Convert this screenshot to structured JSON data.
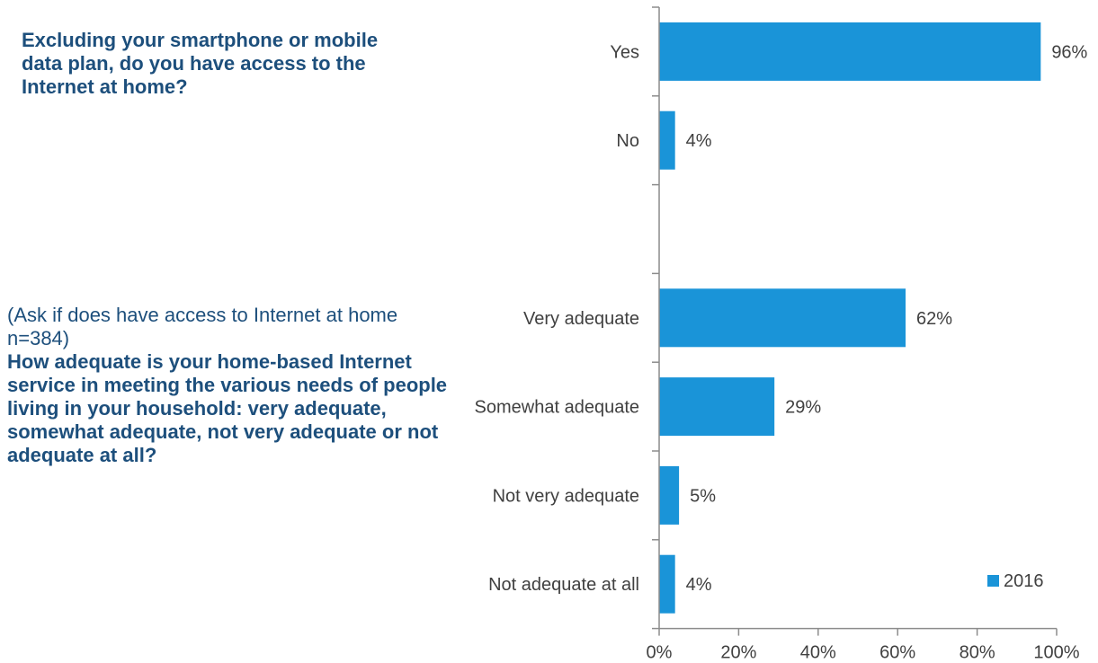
{
  "questions": {
    "q1": "Excluding your smartphone or mobile data plan, do you have access to the Internet at home?",
    "q2_note": "(Ask if does have access to Internet at home n=384)",
    "q2": "How adequate is your home-based Internet service in meeting the various needs of people living in your household: very adequate, somewhat adequate, not very adequate or not adequate at all?"
  },
  "chart_data": {
    "type": "bar",
    "orientation": "horizontal",
    "categories": [
      "Yes",
      "No",
      "",
      "Very adequate",
      "Somewhat adequate",
      "Not very adequate",
      "Not adequate  at all"
    ],
    "series": [
      {
        "name": "2016",
        "values": [
          96,
          4,
          null,
          62,
          29,
          5,
          4
        ],
        "data_labels": [
          "96%",
          "4%",
          "",
          "62%",
          "29%",
          "5%",
          "4%"
        ]
      }
    ],
    "x_ticks": [
      0,
      20,
      40,
      60,
      80,
      100
    ],
    "x_tick_labels": [
      "0%",
      "20%",
      "40%",
      "60%",
      "80%",
      "100%"
    ],
    "xlim": [
      0,
      100
    ],
    "grid": false,
    "legend": "bottom-right",
    "colors": {
      "bar": "#1a94d8",
      "axis": "#8c8c8c",
      "label": "#404040"
    }
  }
}
